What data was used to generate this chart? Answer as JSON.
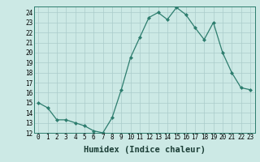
{
  "x": [
    0,
    1,
    2,
    3,
    4,
    5,
    6,
    7,
    8,
    9,
    10,
    11,
    12,
    13,
    14,
    15,
    16,
    17,
    18,
    19,
    20,
    21,
    22,
    23
  ],
  "y": [
    15.0,
    14.5,
    13.3,
    13.3,
    13.0,
    12.7,
    12.2,
    12.0,
    13.5,
    16.3,
    19.5,
    21.5,
    23.5,
    24.0,
    23.3,
    24.5,
    23.8,
    22.5,
    21.3,
    23.0,
    20.0,
    18.0,
    16.5,
    16.3
  ],
  "xlabel": "Humidex (Indice chaleur)",
  "ylim": [
    12,
    24.6
  ],
  "xlim": [
    -0.5,
    23.5
  ],
  "yticks": [
    12,
    13,
    14,
    15,
    16,
    17,
    18,
    19,
    20,
    21,
    22,
    23,
    24
  ],
  "xticks": [
    0,
    1,
    2,
    3,
    4,
    5,
    6,
    7,
    8,
    9,
    10,
    11,
    12,
    13,
    14,
    15,
    16,
    17,
    18,
    19,
    20,
    21,
    22,
    23
  ],
  "line_color": "#2d7d6e",
  "marker": "D",
  "marker_size": 2.0,
  "bg_color": "#cce9e5",
  "grid_color": "#aaccca",
  "xlabel_fontsize": 7.5,
  "tick_fontsize": 5.5
}
